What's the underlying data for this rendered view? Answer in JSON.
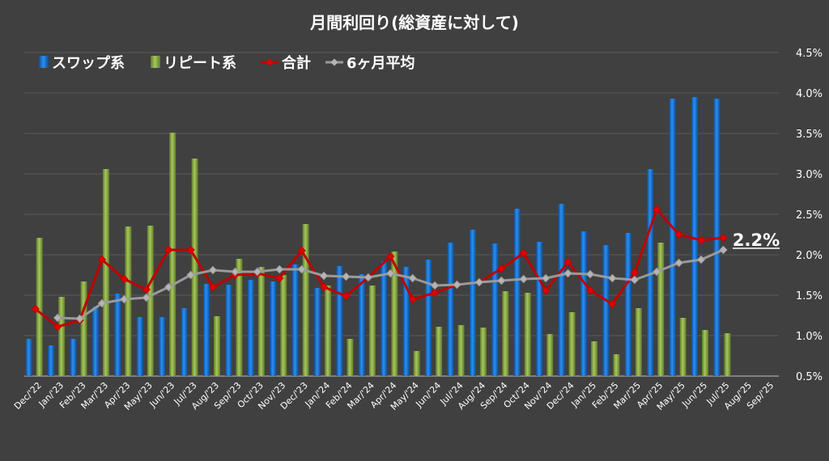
{
  "chart_data": {
    "type": "bar",
    "title": "月間利回り(総資産に対して)",
    "categories": [
      "Dec/'22",
      "Jan/'23",
      "Feb/'23",
      "Mar/'23",
      "Apr/'23",
      "May/'23",
      "Jun/'23",
      "Jul/'23",
      "Aug/'23",
      "Sep/'23",
      "Oct/'23",
      "Nov/'23",
      "Dec/'23",
      "Jan/'24",
      "Feb/'24",
      "Mar/'24",
      "Apr/'24",
      "May/'24",
      "Jun/'24",
      "Jul/'24",
      "Aug/'24",
      "Sep/'24",
      "Oct/'24",
      "Nov/'24",
      "Dec/'24",
      "Jan/'25",
      "Feb/'25",
      "Mar/'25",
      "Apr/'25",
      "May/'25",
      "Jun/'25",
      "Jul/'25",
      "Aug/'25",
      "Sep/'25"
    ],
    "series": [
      {
        "name": "スワップ系",
        "type": "bar",
        "color": "#1a7ad8",
        "values": [
          0.96,
          0.88,
          0.96,
          1.36,
          1.52,
          1.23,
          1.23,
          1.34,
          1.64,
          1.63,
          1.69,
          1.67,
          1.88,
          1.59,
          1.86,
          1.76,
          1.92,
          1.85,
          1.94,
          2.15,
          2.31,
          2.14,
          2.57,
          2.16,
          2.63,
          2.29,
          2.12,
          2.27,
          3.06,
          3.93,
          3.95,
          3.93,
          null,
          null
        ]
      },
      {
        "name": "リピート系",
        "type": "bar",
        "color": "#8fb04b",
        "values": [
          2.21,
          1.48,
          1.67,
          3.06,
          2.35,
          2.36,
          3.51,
          3.19,
          1.24,
          1.95,
          1.85,
          1.75,
          2.38,
          1.62,
          0.96,
          1.62,
          2.04,
          0.81,
          1.11,
          1.13,
          1.1,
          1.55,
          1.53,
          1.02,
          1.29,
          0.93,
          0.77,
          1.34,
          2.15,
          1.22,
          1.07,
          1.03,
          null,
          null
        ]
      },
      {
        "name": "合計",
        "type": "line",
        "color": "#c00000",
        "values": [
          1.33,
          1.11,
          1.19,
          1.94,
          1.7,
          1.57,
          2.06,
          2.06,
          1.6,
          1.75,
          1.77,
          1.71,
          2.05,
          1.6,
          1.49,
          1.72,
          1.98,
          1.45,
          1.53,
          1.63,
          1.66,
          1.83,
          2.02,
          1.56,
          1.91,
          1.56,
          1.39,
          1.78,
          2.56,
          2.25,
          2.18,
          2.21,
          null,
          null
        ]
      },
      {
        "name": "6ヶ月平均",
        "type": "line",
        "color": "#9a9a9a",
        "values": [
          null,
          1.22,
          1.21,
          1.4,
          1.45,
          1.47,
          1.6,
          1.75,
          1.81,
          1.79,
          1.79,
          1.82,
          1.82,
          1.74,
          1.73,
          1.72,
          1.77,
          1.71,
          1.62,
          1.63,
          1.66,
          1.68,
          1.7,
          1.71,
          1.77,
          1.76,
          1.71,
          1.69,
          1.79,
          1.9,
          1.94,
          2.06,
          null,
          null
        ]
      }
    ],
    "ylim": [
      0.5,
      4.5
    ],
    "yticks": [
      "0.5%",
      "1.0%",
      "1.5%",
      "2.0%",
      "2.5%",
      "3.0%",
      "3.5%",
      "4.0%",
      "4.5%"
    ],
    "ytick_values": [
      0.5,
      1.0,
      1.5,
      2.0,
      2.5,
      3.0,
      3.5,
      4.0,
      4.5
    ],
    "annotation": "2.2%",
    "legend_position": "top-left",
    "grid": true,
    "colors": {
      "background": "#404040",
      "grid": "#5a5a5a",
      "text": "#ffffff"
    }
  }
}
